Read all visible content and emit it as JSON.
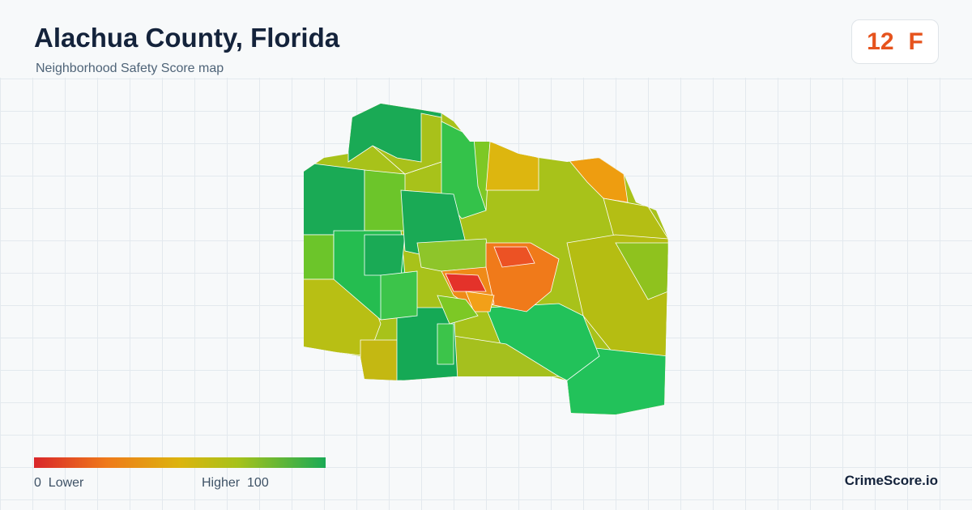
{
  "header": {
    "title": "Alachua County, Florida",
    "subtitle": "Neighborhood Safety Score map"
  },
  "score": {
    "value": 12,
    "grade": "F"
  },
  "legend": {
    "min": 0,
    "min_label": "Lower",
    "max_label": "Higher",
    "max": 100
  },
  "brand": "CrimeScore.io"
}
